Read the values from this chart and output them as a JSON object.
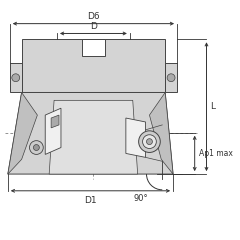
{
  "bg_color": "#ffffff",
  "part_fill": "#d4d4d4",
  "part_fill2": "#c0c0c0",
  "part_fill3": "#b8b8b8",
  "part_edge": "#444444",
  "dim_color": "#333333",
  "labels": {
    "D6": "D6",
    "D": "D",
    "D1": "D1",
    "L": "L",
    "Ap1max": "Ap1 max",
    "angle": "90°"
  },
  "figsize": [
    2.4,
    2.4
  ],
  "dpi": 100
}
